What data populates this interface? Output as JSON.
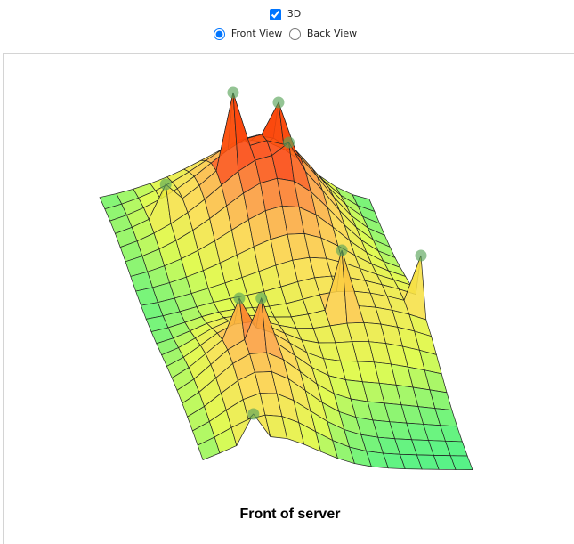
{
  "controls": {
    "three_d": {
      "label": "3D",
      "checked": true
    },
    "views": [
      {
        "label": "Front View",
        "checked": true
      },
      {
        "label": "Back View",
        "checked": false
      }
    ]
  },
  "chart_data": {
    "type": "surface",
    "title": "Front of server",
    "sensors": [
      {
        "x": 0.44,
        "y": 0.17,
        "value": 169
      },
      {
        "x": 0.64,
        "y": 0.11,
        "value": 143
      },
      {
        "x": 0.64,
        "y": 0.21,
        "value": 128
      },
      {
        "x": 0.2,
        "y": 0.16,
        "value": 66
      },
      {
        "x": 0.27,
        "y": 0.71,
        "value": 103
      },
      {
        "x": 0.32,
        "y": 0.77,
        "value": 118
      },
      {
        "x": 0.7,
        "y": 0.57,
        "value": 112
      },
      {
        "x": 0.97,
        "y": 0.51,
        "value": 91
      },
      {
        "x": 0.21,
        "y": 1.0,
        "value": 63
      }
    ],
    "marker_color": "#5aa55a"
  }
}
